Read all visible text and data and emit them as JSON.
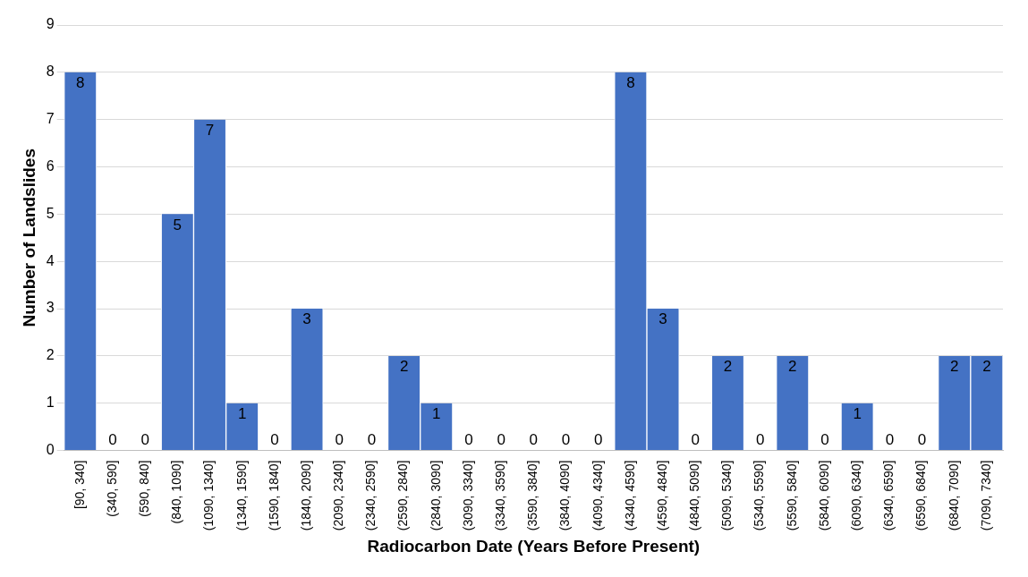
{
  "chart_data": {
    "type": "bar",
    "xlabel": "Radiocarbon Date (Years Before Present)",
    "ylabel": "Number of Landslides",
    "categories": [
      "[90, 340]",
      "(340, 590]",
      "(590, 840]",
      "(840, 1090]",
      "(1090, 1340]",
      "(1340, 1590]",
      "(1590, 1840]",
      "(1840, 2090]",
      "(2090, 2340]",
      "(2340, 2590]",
      "(2590, 2840]",
      "(2840, 3090]",
      "(3090, 3340]",
      "(3340, 3590]",
      "(3590, 3840]",
      "(3840, 4090]",
      "(4090, 4340]",
      "(4340, 4590]",
      "(4590, 4840]",
      "(4840, 5090]",
      "(5090, 5340]",
      "(5340, 5590]",
      "(5590, 5840]",
      "(5840, 6090]",
      "(6090, 6340]",
      "(6340, 6590]",
      "(6590, 6840]",
      "(6840, 7090]",
      "(7090, 7340]"
    ],
    "values": [
      8,
      0,
      0,
      5,
      7,
      1,
      0,
      3,
      0,
      0,
      2,
      1,
      0,
      0,
      0,
      0,
      0,
      8,
      3,
      0,
      2,
      0,
      2,
      0,
      1,
      0,
      0,
      2,
      2
    ],
    "color": "#4472c4",
    "ylim": [
      0,
      9
    ],
    "yticks": [
      0,
      1,
      2,
      3,
      4,
      5,
      6,
      7,
      8,
      9
    ],
    "grid": "y",
    "data_labels": true,
    "legend": false
  }
}
